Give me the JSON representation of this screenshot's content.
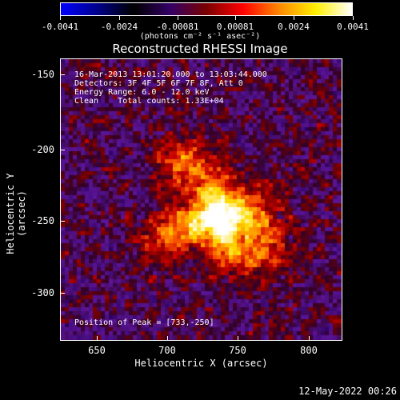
{
  "colorbar": {
    "gradient_colors": [
      "#0000ff",
      "#00008b",
      "#000000",
      "#330066",
      "#7a0000",
      "#ff0000",
      "#ff8800",
      "#ffee00",
      "#ffffff"
    ],
    "ticks": [
      "-0.0041",
      "-0.0024",
      "-0.00081",
      "0.00081",
      "0.0024",
      "0.0041"
    ],
    "units": "(photons cm⁻² s⁻¹ asec⁻²)"
  },
  "title": "Reconstructed RHESSI Image",
  "annotations": {
    "time_range": "16-Mar-2013 13:01:20.000 to 13:03:44.000",
    "detectors": "Detectors: 3F 4F 5F 6F 7F 8F, Att 0",
    "energy": "Energy Range: 6.0 - 12.0 keV",
    "clean": "Clean    Total counts: 1.33E+04",
    "peak": "Position of Peak = [733,-250]"
  },
  "axes": {
    "xlabel": "Heliocentric X (arcsec)",
    "ylabel": "Heliocentric Y (arcsec)",
    "xticks": [
      "650",
      "700",
      "750",
      "800"
    ],
    "yticks": [
      "-150",
      "-200",
      "-250",
      "-300"
    ]
  },
  "footer": "12-May-2022 00:26"
}
